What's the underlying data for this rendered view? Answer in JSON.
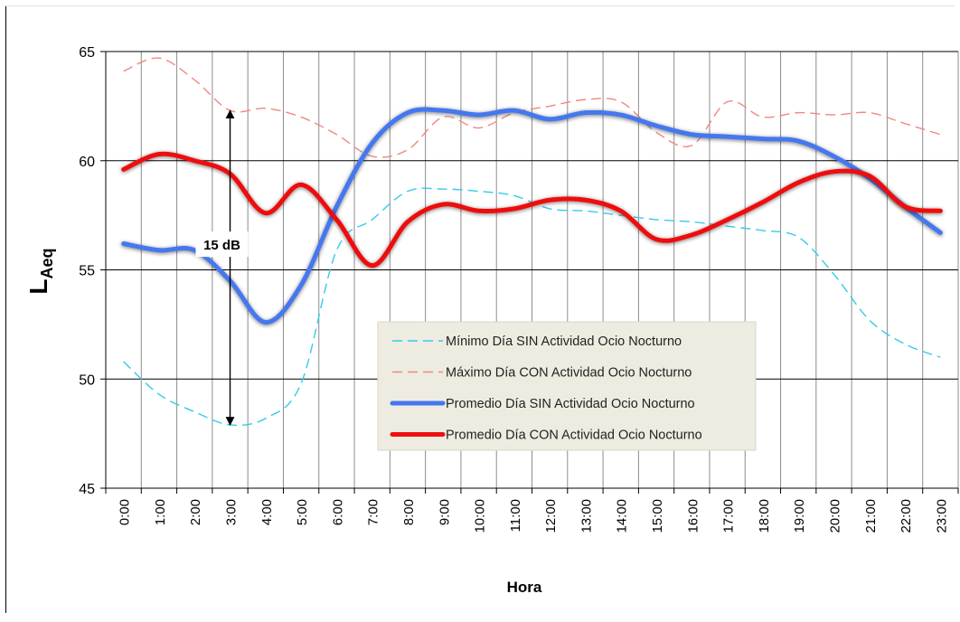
{
  "chart_data": {
    "type": "line",
    "xlabel": "Hora",
    "ylabel": "L",
    "ylabel_sub": "Aeq",
    "ylim": [
      45,
      65
    ],
    "yticks": [
      45,
      50,
      55,
      60,
      65
    ],
    "grid": "on",
    "legend_position": "center-right",
    "categories": [
      "0:00",
      "1:00",
      "2:00",
      "3:00",
      "4:00",
      "5:00",
      "6:00",
      "7:00",
      "8:00",
      "9:00",
      "10:00",
      "11:00",
      "12:00",
      "13:00",
      "14:00",
      "15:00",
      "16:00",
      "17:00",
      "18:00",
      "19:00",
      "20:00",
      "21:00",
      "22:00",
      "23:00"
    ],
    "series": [
      {
        "name": "Mínimo Día SIN Actividad Ocio Nocturno",
        "style": "dashed",
        "color": "#33CCE8",
        "values": [
          50.8,
          49.3,
          48.5,
          47.9,
          48.2,
          49.8,
          55.9,
          57.3,
          58.6,
          58.7,
          58.6,
          58.4,
          57.8,
          57.7,
          57.5,
          57.3,
          57.2,
          57.0,
          56.8,
          56.5,
          54.8,
          52.7,
          51.6,
          51.0
        ]
      },
      {
        "name": "Máximo Día CON Actividad Ocio Nocturno",
        "style": "dashed",
        "color": "#F08880",
        "values": [
          64.1,
          64.7,
          63.7,
          62.3,
          62.4,
          62.0,
          61.2,
          60.2,
          60.5,
          62.0,
          61.5,
          62.2,
          62.5,
          62.8,
          62.7,
          61.3,
          60.7,
          62.7,
          62.0,
          62.2,
          62.1,
          62.2,
          61.7,
          61.2
        ]
      },
      {
        "name": "Promedio Día SIN Actividad Ocio Nocturno",
        "style": "solid",
        "color": "#4477EE",
        "values": [
          56.2,
          55.9,
          55.9,
          54.5,
          52.6,
          54.3,
          57.9,
          60.8,
          62.2,
          62.3,
          62.1,
          62.3,
          61.9,
          62.2,
          62.1,
          61.6,
          61.2,
          61.1,
          61.0,
          60.9,
          60.2,
          59.2,
          57.9,
          56.7
        ]
      },
      {
        "name": "Promedio Día CON Actividad Ocio Nocturno",
        "style": "solid",
        "color": "#EE1111",
        "values": [
          59.6,
          60.3,
          60.0,
          59.4,
          57.6,
          58.9,
          57.3,
          55.2,
          57.2,
          58.0,
          57.7,
          57.8,
          58.2,
          58.2,
          57.7,
          56.4,
          56.6,
          57.3,
          58.1,
          59.0,
          59.5,
          59.3,
          57.9,
          57.7
        ]
      }
    ],
    "annotations": {
      "span_label": "15 dB",
      "span_x_category": "3:00",
      "span_low": 47.9,
      "span_high": 62.3
    }
  }
}
